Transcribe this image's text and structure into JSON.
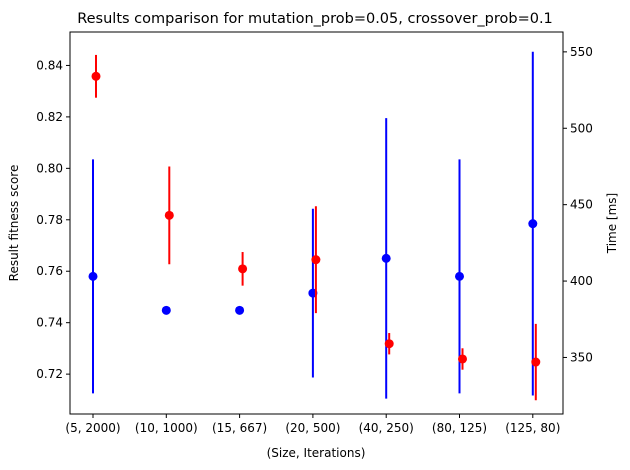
{
  "chart_data": {
    "type": "scatter",
    "title": "Results comparison for mutation_prob=0.05, crossover_prob=0.1",
    "xlabel": "(Size, Iterations)",
    "ylabel": "Result fitness score",
    "y2label": "Time [ms]",
    "categories": [
      "(5, 2000)",
      "(10, 1000)",
      "(15, 667)",
      "(20, 500)",
      "(40, 250)",
      "(80, 125)",
      "(125, 80)"
    ],
    "ylim": [
      0.7045,
      0.853
    ],
    "y2lim": [
      313,
      563
    ],
    "yticks": [
      "0.72",
      "0.74",
      "0.76",
      "0.78",
      "0.80",
      "0.82",
      "0.84"
    ],
    "y2ticks": [
      "350",
      "400",
      "450",
      "500",
      "550"
    ],
    "series": [
      {
        "axis": "left",
        "color": "#0000ff",
        "values": [
          0.758,
          0.7448,
          0.7448,
          0.7515,
          0.765,
          0.758,
          0.7785
        ],
        "errors": [
          0.0455,
          0,
          0,
          0.0328,
          0.0545,
          0.0455,
          0.0668
        ]
      },
      {
        "axis": "right",
        "color": "#ff0000",
        "values": [
          534,
          443,
          408,
          414,
          359,
          349,
          347
        ],
        "errors": [
          14,
          32,
          11,
          35,
          7,
          7,
          25
        ]
      }
    ]
  }
}
